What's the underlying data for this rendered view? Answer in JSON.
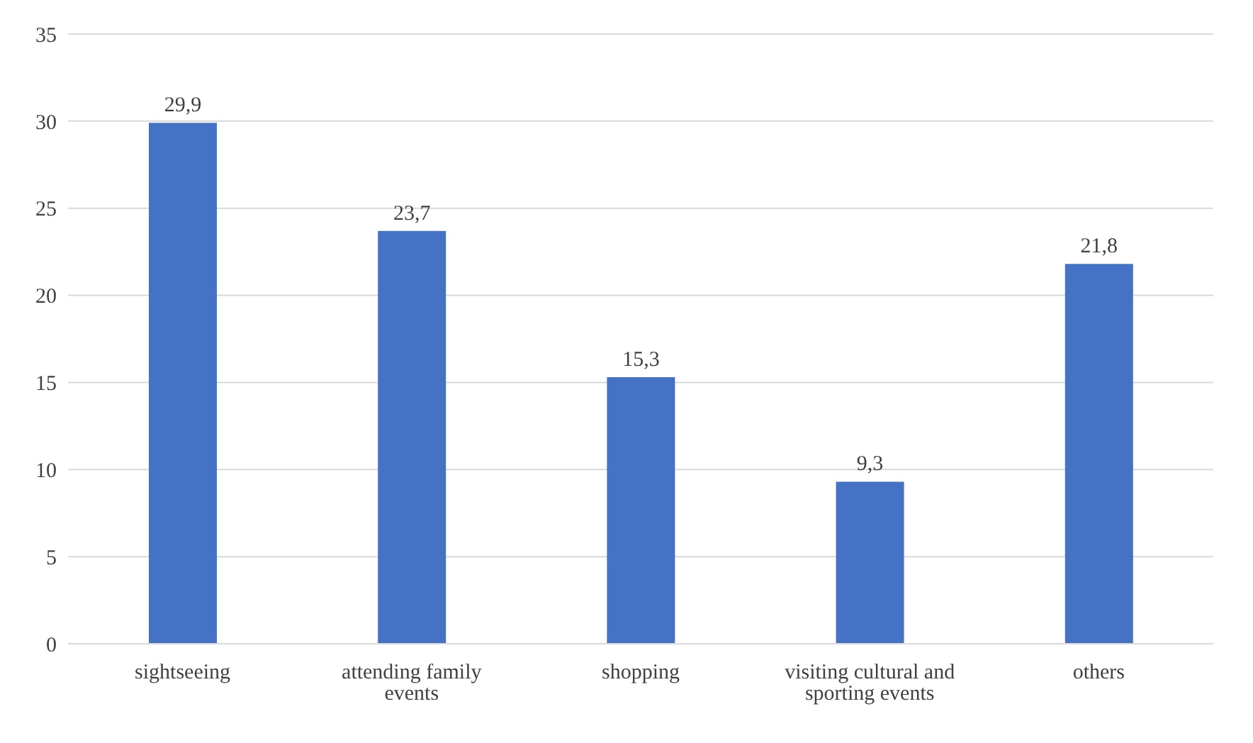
{
  "chart_data": {
    "type": "bar",
    "categories": [
      "sightseeing",
      "attending family events",
      "shopping",
      "visiting cultural and sporting events",
      "others"
    ],
    "values": [
      29.9,
      23.7,
      15.3,
      9.3,
      21.8
    ],
    "value_labels": [
      "29,9",
      "23,7",
      "15,3",
      "9,3",
      "21,8"
    ],
    "color": "#4472c4",
    "ylim": [
      0,
      35
    ],
    "yticks": [
      0,
      5,
      10,
      15,
      20,
      25,
      30,
      35
    ],
    "grid": "y"
  }
}
